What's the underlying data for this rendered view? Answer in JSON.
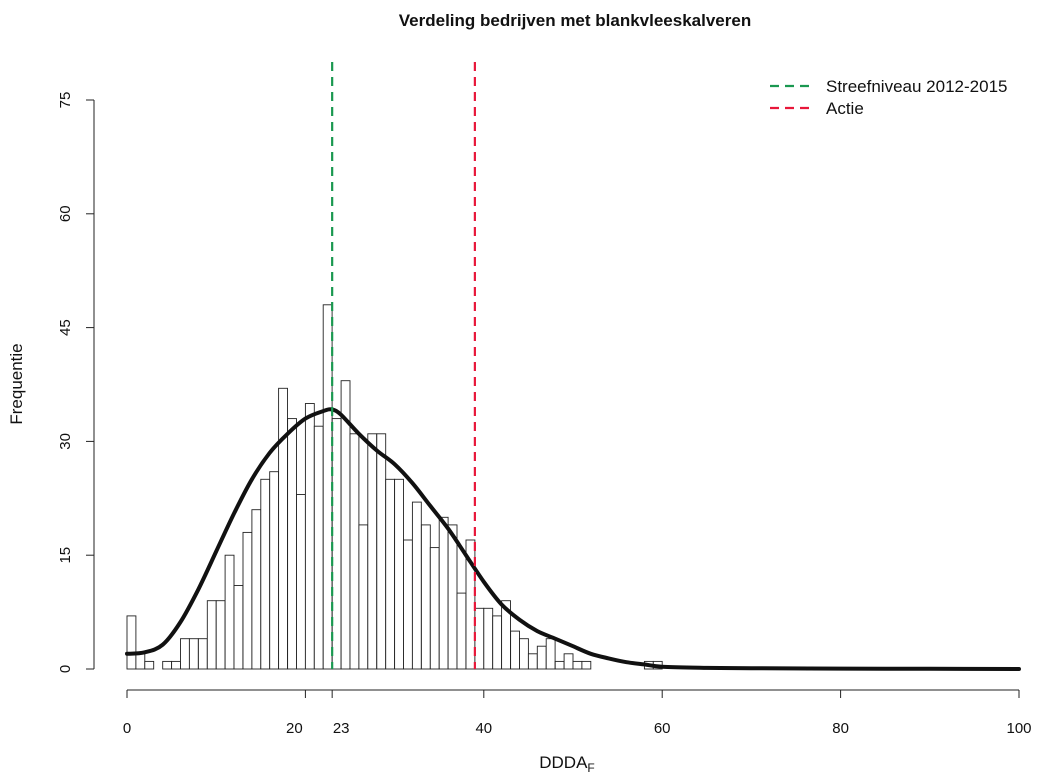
{
  "chart_data": {
    "type": "bar",
    "title": "Verdeling bedrijven met blankvleeskalveren",
    "xlabel": "DDDA",
    "xlabel_sub": "F",
    "ylabel": "Frequentie",
    "xlim": [
      0,
      100
    ],
    "ylim": [
      0,
      75
    ],
    "x_ticks": [
      0,
      20,
      23,
      40,
      60,
      80,
      100
    ],
    "y_ticks": [
      0,
      15,
      30,
      45,
      60,
      75
    ],
    "bin_width": 1,
    "bin_starts": [
      0,
      1,
      2,
      3,
      4,
      5,
      6,
      7,
      8,
      9,
      10,
      11,
      12,
      13,
      14,
      15,
      16,
      17,
      18,
      19,
      20,
      21,
      22,
      23,
      24,
      25,
      26,
      27,
      28,
      29,
      30,
      31,
      32,
      33,
      34,
      35,
      36,
      37,
      38,
      39,
      40,
      41,
      42,
      43,
      44,
      45,
      46,
      47,
      48,
      49,
      50,
      51,
      52,
      53,
      54,
      55,
      56,
      57,
      58,
      59
    ],
    "frequencies": [
      7,
      2,
      1,
      0,
      1,
      1,
      4,
      4,
      4,
      9,
      9,
      15,
      11,
      18,
      21,
      25,
      26,
      37,
      33,
      23,
      35,
      32,
      48,
      33,
      38,
      31,
      19,
      31,
      31,
      25,
      25,
      17,
      22,
      19,
      16,
      20,
      19,
      10,
      17,
      8,
      8,
      7,
      9,
      5,
      4,
      2,
      3,
      4,
      1,
      2,
      1,
      1,
      0,
      0,
      0,
      0,
      0,
      0,
      1,
      1
    ],
    "density_curve": {
      "x": [
        0,
        2,
        4,
        6,
        8,
        10,
        12,
        14,
        16,
        18,
        20,
        22,
        23,
        24,
        26,
        28,
        30,
        32,
        34,
        36,
        38,
        40,
        42,
        44,
        46,
        48,
        50,
        52,
        54,
        56,
        58,
        60,
        65,
        70,
        80,
        90,
        100
      ],
      "y": [
        2.0,
        2.2,
        3.2,
        6.2,
        10.5,
        15.5,
        20.5,
        25.0,
        28.5,
        31.0,
        33.0,
        34.0,
        34.2,
        33.5,
        31.0,
        28.8,
        27.0,
        24.5,
        21.5,
        18.5,
        15.0,
        11.5,
        8.5,
        6.5,
        5.0,
        4.0,
        3.0,
        2.0,
        1.4,
        0.9,
        0.6,
        0.3,
        0.15,
        0.1,
        0.05,
        0.02,
        0.0
      ]
    },
    "vlines": [
      {
        "name": "Streefniveau 2012-2015",
        "x": 23,
        "color": "#1a9850"
      },
      {
        "name": "Actie",
        "x": 39,
        "color": "#e8173a"
      }
    ],
    "legend_position": "top-right"
  }
}
